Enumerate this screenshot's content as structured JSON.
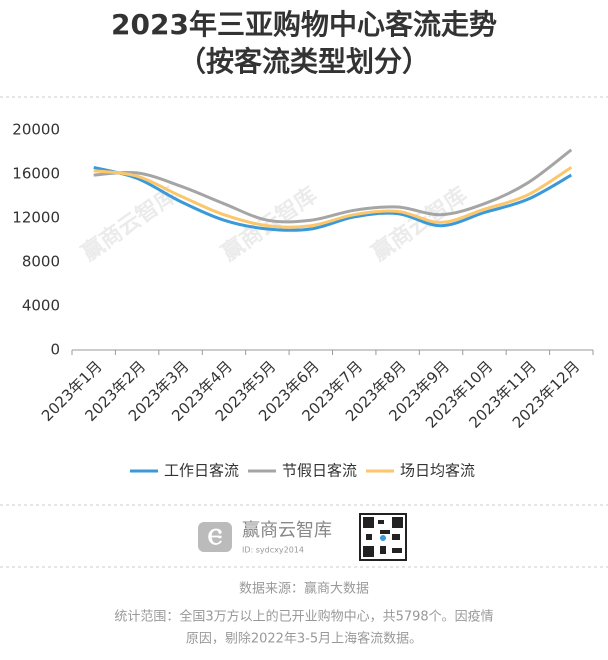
{
  "chart_data": {
    "type": "line",
    "title": "2023年三亚购物中心客流走势",
    "subtitle": "（按客流类型划分）",
    "categories": [
      "2023年1月",
      "2023年2月",
      "2023年3月",
      "2023年4月",
      "2023年5月",
      "2023年6月",
      "2023年7月",
      "2023年8月",
      "2023年9月",
      "2023年10月",
      "2023年11月",
      "2023年12月"
    ],
    "series": [
      {
        "name": "工作日客流",
        "color": "#3a9ad9",
        "values": [
          16600,
          15600,
          13500,
          11800,
          11000,
          11000,
          12100,
          12400,
          11300,
          12500,
          13700,
          15900
        ]
      },
      {
        "name": "节假日客流",
        "color": "#a5a5a5",
        "values": [
          15900,
          16100,
          14900,
          13300,
          11800,
          11800,
          12700,
          13000,
          12300,
          13300,
          15200,
          18200
        ]
      },
      {
        "name": "场日均客流",
        "color": "#fcc66b",
        "values": [
          16300,
          15800,
          14000,
          12300,
          11300,
          11300,
          12300,
          12600,
          11600,
          12800,
          14100,
          16600
        ]
      }
    ],
    "ylim": [
      0,
      20000
    ],
    "yticks": [
      0,
      4000,
      8000,
      12000,
      16000,
      20000
    ],
    "grid": false,
    "legend": "bottom"
  },
  "footer": {
    "logo_text": "赢商云智库",
    "logo_id": "ID: sydcxy2014",
    "source": "数据来源：赢商大数据",
    "note": [
      "统计范围：全国3万方以上的已开业购物中心，共5798个。因疫情",
      "原因，剔除2022年3-5月上海客流数据。"
    ]
  }
}
